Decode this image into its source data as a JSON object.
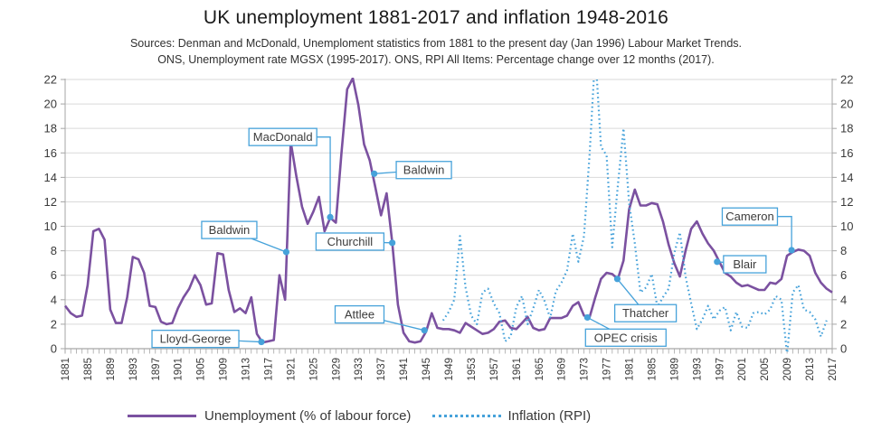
{
  "title": "UK unemployment 1881-2017 and inflation 1948-2016",
  "sources_line1": "Sources: Denman and McDonald, Unemploment statistics from 1881 to the present day (Jan 1996) Labour Market Trends.",
  "sources_line2": "ONS, Unemployment rate MGSX (1995-2017). ONS, RPI All Items: Percentage change over 12 months (2017).",
  "legend": {
    "unemployment": {
      "label": "Unemployment (% of labour force)",
      "color": "#7B51A0",
      "style": "solid"
    },
    "inflation": {
      "label": "Inflation (RPI)",
      "color": "#46A2DA",
      "style": "dotted"
    }
  },
  "colors": {
    "unemployment_line": "#7B51A0",
    "inflation_line": "#46A2DA",
    "annotation_blue": "#46A2DA",
    "gridline": "#D9D9D9",
    "axis": "#A6A6A6",
    "tick_label": "#3a3a3a",
    "annotation_text": "#3c3c3c"
  },
  "chart_data": {
    "type": "line",
    "title": "UK unemployment 1881-2017 and inflation 1948-2016",
    "xlabel": "",
    "ylabel": "",
    "x_range": [
      1881,
      2017
    ],
    "ylim": [
      0,
      22
    ],
    "ytick_step": 2,
    "grid": "horizontal",
    "legend_position": "bottom",
    "x_ticks": [
      1881,
      1885,
      1889,
      1893,
      1897,
      1901,
      1905,
      1909,
      1913,
      1917,
      1921,
      1925,
      1929,
      1933,
      1937,
      1941,
      1945,
      1949,
      1953,
      1957,
      1961,
      1965,
      1969,
      1973,
      1977,
      1981,
      1985,
      1989,
      1993,
      1997,
      2001,
      2005,
      2009,
      2013,
      2017
    ],
    "series": [
      {
        "name": "Unemployment (% of labour force)",
        "style": "solid",
        "color": "#7B51A0",
        "x_start": 1881,
        "values": [
          3.5,
          2.9,
          2.6,
          2.7,
          5.2,
          9.6,
          9.8,
          8.9,
          3.2,
          2.1,
          2.1,
          4.2,
          7.5,
          7.3,
          6.2,
          3.5,
          3.4,
          2.2,
          2.0,
          2.1,
          3.3,
          4.2,
          4.9,
          6.0,
          5.2,
          3.6,
          3.7,
          7.8,
          7.7,
          4.8,
          3.0,
          3.3,
          2.9,
          4.2,
          1.2,
          0.5,
          0.6,
          0.7,
          6.0,
          4.0,
          16.9,
          14.1,
          11.6,
          10.2,
          11.2,
          12.4,
          9.6,
          10.7,
          10.3,
          16.0,
          21.2,
          22.1,
          19.9,
          16.7,
          15.4,
          13.2,
          10.9,
          12.7,
          8.7,
          3.6,
          1.3,
          0.6,
          0.5,
          0.6,
          1.4,
          2.9,
          1.7,
          1.6,
          1.6,
          1.5,
          1.3,
          2.1,
          1.8,
          1.5,
          1.2,
          1.3,
          1.6,
          2.2,
          2.3,
          1.7,
          1.6,
          2.1,
          2.6,
          1.7,
          1.5,
          1.6,
          2.5,
          2.5,
          2.5,
          2.7,
          3.5,
          3.8,
          2.7,
          2.6,
          4.2,
          5.7,
          6.2,
          6.1,
          5.7,
          7.2,
          11.4,
          13.0,
          11.7,
          11.7,
          11.9,
          11.8,
          10.4,
          8.5,
          7.0,
          5.9,
          8.0,
          9.8,
          10.4,
          9.4,
          8.6,
          8.0,
          7.1,
          6.2,
          5.9,
          5.4,
          5.1,
          5.2,
          5.0,
          4.8,
          4.8,
          5.4,
          5.3,
          5.7,
          7.6,
          7.9,
          8.1,
          8.0,
          7.6,
          6.2,
          5.4,
          4.9,
          4.6
        ]
      },
      {
        "name": "Inflation (RPI)",
        "style": "dotted",
        "color": "#46A2DA",
        "x_start": 1948,
        "values": [
          2.3,
          3.0,
          4.0,
          9.2,
          5.0,
          2.7,
          2.0,
          4.6,
          4.9,
          3.7,
          2.9,
          0.6,
          1.0,
          3.4,
          4.3,
          2.0,
          3.3,
          4.8,
          3.9,
          2.5,
          4.7,
          5.4,
          6.4,
          9.4,
          7.1,
          9.2,
          16.0,
          24.2,
          16.5,
          15.8,
          8.3,
          13.4,
          18.0,
          11.9,
          8.6,
          4.6,
          5.0,
          6.1,
          3.4,
          4.2,
          4.9,
          7.8,
          9.5,
          5.9,
          3.7,
          1.6,
          2.4,
          3.5,
          2.4,
          3.1,
          3.4,
          1.5,
          3.0,
          1.8,
          1.7,
          2.9,
          3.0,
          2.8,
          3.2,
          4.3,
          4.0,
          -0.5,
          4.6,
          5.2,
          3.2,
          3.0,
          2.4,
          1.0,
          2.3
        ]
      }
    ],
    "annotations": [
      {
        "label": "MacDonald",
        "box_year": 1919.6,
        "box_value": 17.3,
        "point_year": 1928.0,
        "point_value": 10.75,
        "leader": "elbow"
      },
      {
        "label": "Baldwin",
        "box_year": 1910.1,
        "box_value": 9.7,
        "point_year": 1920.2,
        "point_value": 7.9,
        "leader": "straight"
      },
      {
        "label": "Baldwin",
        "box_year": 1944.6,
        "box_value": 14.6,
        "point_year": 1935.8,
        "point_value": 14.3,
        "leader": "straight"
      },
      {
        "label": "Churchill",
        "box_year": 1931.5,
        "box_value": 8.75,
        "point_year": 1939.0,
        "point_value": 8.65,
        "leader": "straight"
      },
      {
        "label": "Attlee",
        "box_year": 1933.2,
        "box_value": 2.8,
        "point_year": 1944.7,
        "point_value": 1.5,
        "leader": "straight"
      },
      {
        "label": "Lloyd-George",
        "box_year": 1904.1,
        "box_value": 0.8,
        "point_year": 1915.8,
        "point_value": 0.55,
        "leader": "straight"
      },
      {
        "label": "OPEC crisis",
        "box_year": 1980.4,
        "box_value": 0.9,
        "point_year": 1973.6,
        "point_value": 2.55,
        "leader": "straight"
      },
      {
        "label": "Thatcher",
        "box_year": 1983.9,
        "box_value": 2.9,
        "point_year": 1978.9,
        "point_value": 5.7,
        "leader": "straight"
      },
      {
        "label": "Blair",
        "box_year": 2001.5,
        "box_value": 6.9,
        "point_year": 1996.6,
        "point_value": 7.1,
        "leader": "straight"
      },
      {
        "label": "Cameron",
        "box_year": 2002.4,
        "box_value": 10.8,
        "point_year": 2009.8,
        "point_value": 8.05,
        "leader": "elbow"
      }
    ]
  }
}
